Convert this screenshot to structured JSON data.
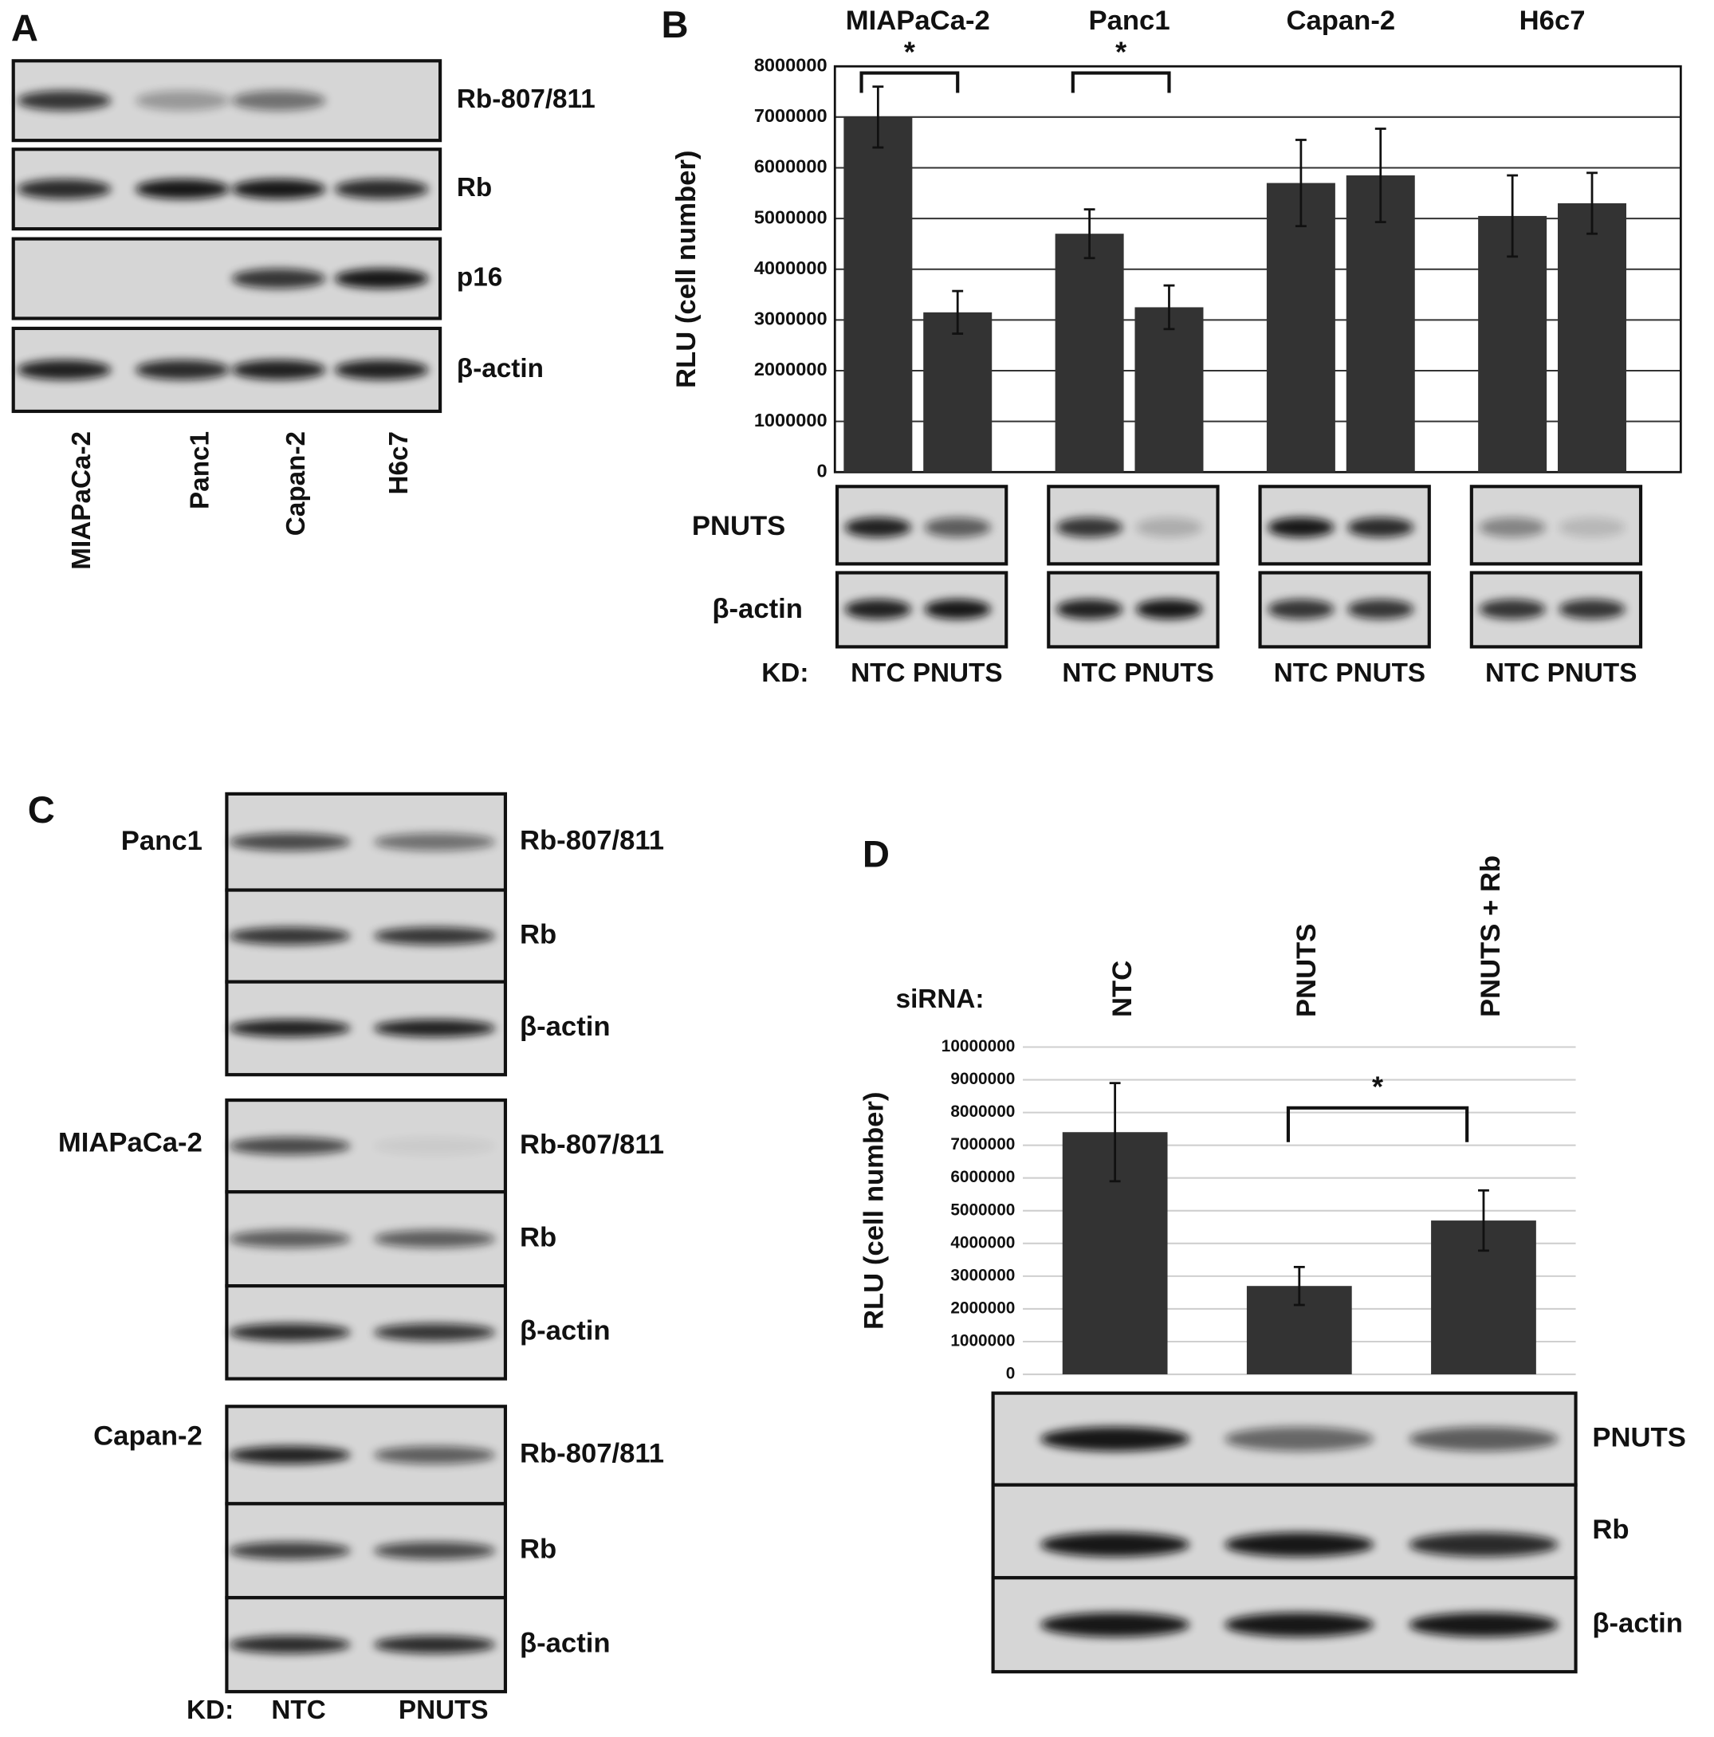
{
  "panel_labels": [
    "A",
    "B",
    "C",
    "D"
  ],
  "panel_a": {
    "rows": [
      "Rb-807/811",
      "Rb",
      "p16",
      "β-actin"
    ],
    "lanes": [
      "MIAPaCa-2",
      "Panc1",
      "Capan-2",
      "H6c7"
    ]
  },
  "chart_data": [
    {
      "type": "bar",
      "categories": [
        "MIAPaCa-2",
        "Panc1",
        "Capan-2",
        "H6c7"
      ],
      "series": [
        {
          "name": "NTC",
          "color": "#333333",
          "values": [
            7000000,
            4700000,
            5700000,
            5050000
          ],
          "errors": [
            600000,
            480000,
            850000,
            800000
          ]
        },
        {
          "name": "PNUTS",
          "color": "#333333",
          "values": [
            3150000,
            3250000,
            5850000,
            5300000
          ],
          "errors": [
            420000,
            430000,
            920000,
            600000
          ]
        }
      ],
      "ylabel": "RLU (cell number)",
      "ylim": [
        0,
        8000000
      ],
      "yticks": [
        0,
        1000000,
        2000000,
        3000000,
        4000000,
        5000000,
        6000000,
        7000000,
        8000000
      ],
      "grid": true,
      "annotations": [
        {
          "text": "*",
          "category": "MIAPaCa-2"
        },
        {
          "text": "*",
          "category": "Panc1"
        }
      ],
      "group_label": "KD:",
      "blots": [
        "PNUTS",
        "β-actin"
      ]
    },
    {
      "type": "bar",
      "categories": [
        "NTC",
        "PNUTS",
        "PNUTS + Rb"
      ],
      "values": [
        7400000,
        2700000,
        4700000
      ],
      "errors": [
        1500000,
        580000,
        920000
      ],
      "color": "#333333",
      "ylabel": "RLU (cell number)",
      "ylim": [
        0,
        10000000
      ],
      "yticks": [
        0,
        1000000,
        2000000,
        3000000,
        4000000,
        5000000,
        6000000,
        7000000,
        8000000,
        9000000,
        10000000
      ],
      "grid": true,
      "annotations": [
        {
          "text": "*",
          "categories": [
            "PNUTS",
            "PNUTS + Rb"
          ]
        }
      ],
      "group_label": "siRNA:",
      "blots": [
        "PNUTS",
        "Rb",
        "β-actin"
      ]
    }
  ],
  "panel_c": {
    "blocks": [
      {
        "cell_line": "Panc1",
        "rows": [
          "Rb-807/811",
          "Rb",
          "β-actin"
        ]
      },
      {
        "cell_line": "MIAPaCa-2",
        "rows": [
          "Rb-807/811",
          "Rb",
          "β-actin"
        ]
      },
      {
        "cell_line": "Capan-2",
        "rows": [
          "Rb-807/811",
          "Rb",
          "β-actin"
        ]
      }
    ],
    "kd_label": "KD:",
    "lanes": [
      "NTC",
      "PNUTS"
    ]
  }
}
